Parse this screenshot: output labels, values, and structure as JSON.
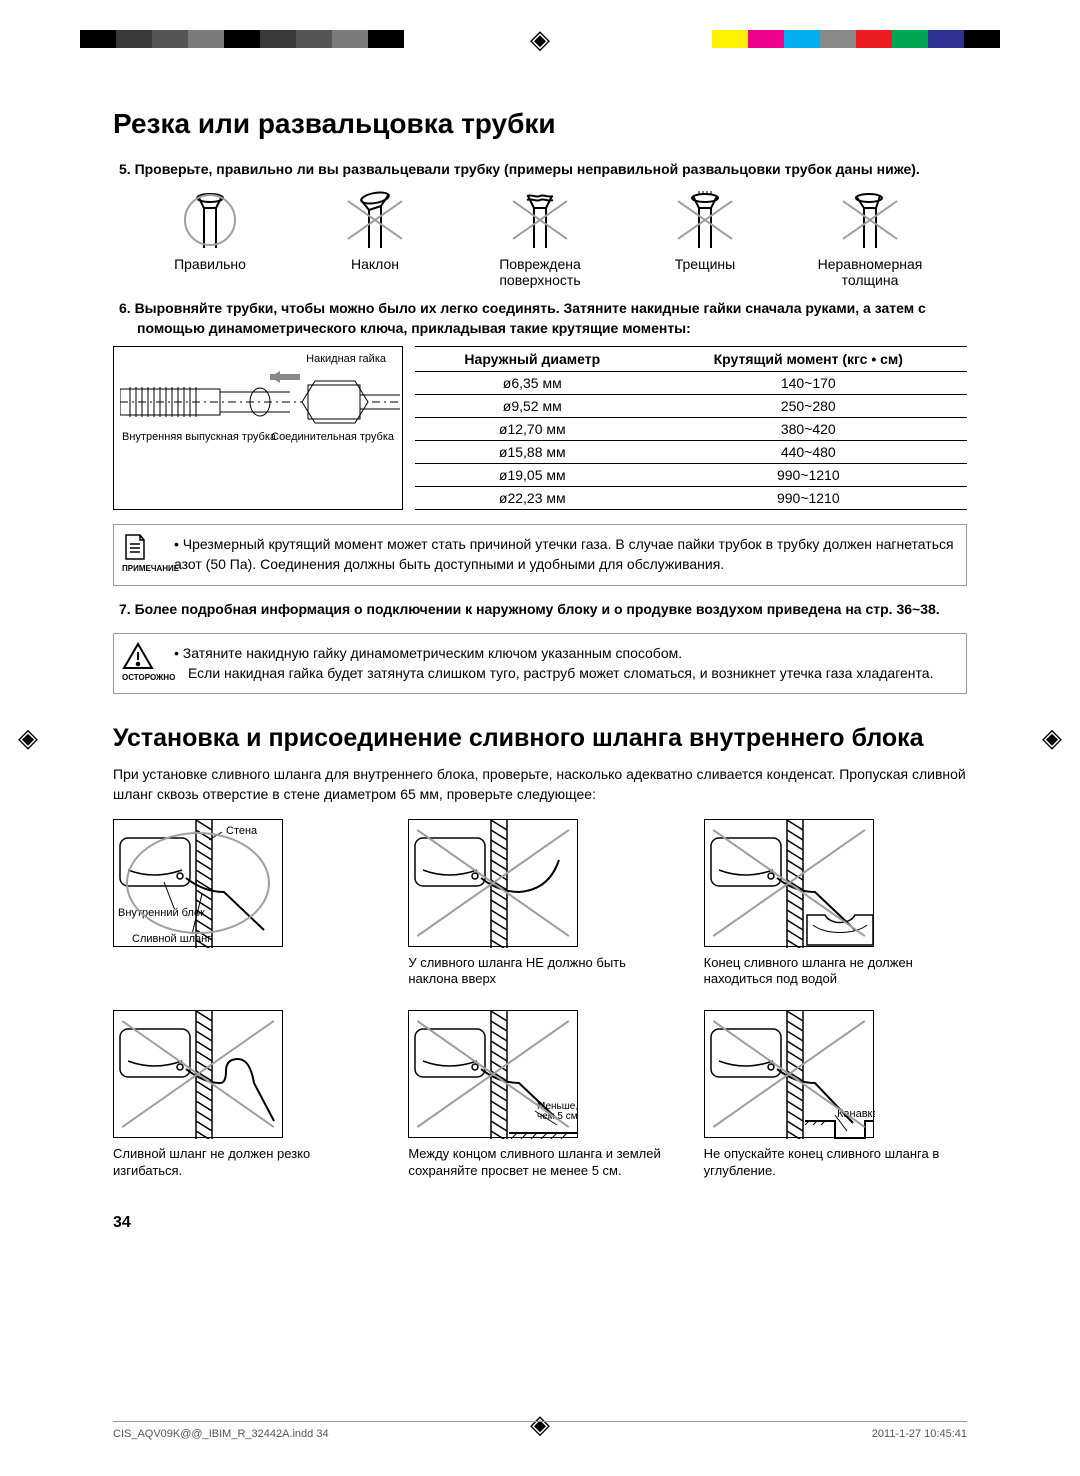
{
  "colorBars": {
    "left": [
      "#000000",
      "#3a3a3a",
      "#555555",
      "#7a7a7a",
      "#000000",
      "#3a3a3a",
      "#555555",
      "#7a7a7a",
      "#000000"
    ],
    "right": [
      "#ffffff",
      "#fff200",
      "#ec008c",
      "#00aeef",
      "#888888",
      "#ed1c24",
      "#00a651",
      "#2e3192",
      "#000000"
    ]
  },
  "title1": "Резка или развальцовка трубки",
  "step5": "5.   Проверьте, правильно ли вы развальцевали трубку (примеры неправильной развальцовки трубок даны ниже).",
  "flare": [
    {
      "label": "Правильно",
      "ok": true
    },
    {
      "label": "Наклон",
      "ok": false
    },
    {
      "label": "Повреждена\nповерхность",
      "ok": false
    },
    {
      "label": "Трещины",
      "ok": false
    },
    {
      "label": "Неравномерная\nтолщина",
      "ok": false
    }
  ],
  "step6": "6.   Выровняйте трубки, чтобы можно было их легко соединять. Затяните накидные гайки сначала руками, а затем с помощью динамометрического ключа, прикладывая такие крутящие моменты:",
  "nutLabels": {
    "top": "Накидная гайка",
    "bl": "Внутренняя выпускная трубка",
    "br": "Соединительная трубка"
  },
  "table": {
    "headers": [
      "Наружный диаметр",
      "Крутящий момент (кгс • см)"
    ],
    "rows": [
      [
        "ø6,35 мм",
        "140~170"
      ],
      [
        "ø9,52 мм",
        "250~280"
      ],
      [
        "ø12,70 мм",
        "380~420"
      ],
      [
        "ø15,88 мм",
        "440~480"
      ],
      [
        "ø19,05 мм",
        "990~1210"
      ],
      [
        "ø22,23 мм",
        "990~1210"
      ]
    ]
  },
  "note1": {
    "iconLabel": "ПРИМЕЧАНИЕ",
    "text": "•   Чрезмерный крутящий момент может стать причиной утечки газа. В случае пайки трубок в трубку должен нагнетаться азот (50 Па). Соединения должны быть доступными и удобными для обслуживания."
  },
  "step7": "7.   Более подробная информация о подключении к наружному блоку и о продувке воздухом приведена на стр. 36~38.",
  "caution": {
    "iconLabel": "ОСТОРОЖНО",
    "line1": "•   Затяните накидную гайку динамометрическим ключом указанным способом.",
    "line2": "Если накидная гайка будет затянута слишком туго, раструб может сломаться, и возникнет утечка газа хладагента."
  },
  "title2": "Установка и присоединение сливного шланга внутреннего блока",
  "intro": "При установке сливного шланга для внутреннего блока, проверьте, насколько адекватно сливается конденсат. Пропуская сливной шланг сквозь отверстие в стене диаметром 65 мм, проверьте следующее:",
  "drain": [
    {
      "caption": "",
      "ok": true,
      "figLabels": {
        "wall": "Стена",
        "unit": "Внутренний блок",
        "hose": "Сливной шланг"
      }
    },
    {
      "caption": "У сливного шланга НЕ должно быть наклона вверх",
      "ok": false
    },
    {
      "caption": "Конец сливного шланга не должен находиться под водой",
      "ok": false
    },
    {
      "caption": "Сливной шланг не должен резко изгибаться.",
      "ok": false
    },
    {
      "caption": "Между концом сливного шланга и землей сохраняйте просвет не менее 5 см.",
      "ok": false,
      "figLabels": {
        "gap": "Меньше,\nчем 5 см"
      }
    },
    {
      "caption": "Не опускайте конец сливного шланга в углубление.",
      "ok": false,
      "figLabels": {
        "ditch": "Канавка"
      }
    }
  ],
  "pageNum": "34",
  "footer": {
    "left": "CIS_AQV09K@@_IBIM_R_32442A.indd   34",
    "right": "2011-1-27   10:45:41"
  }
}
